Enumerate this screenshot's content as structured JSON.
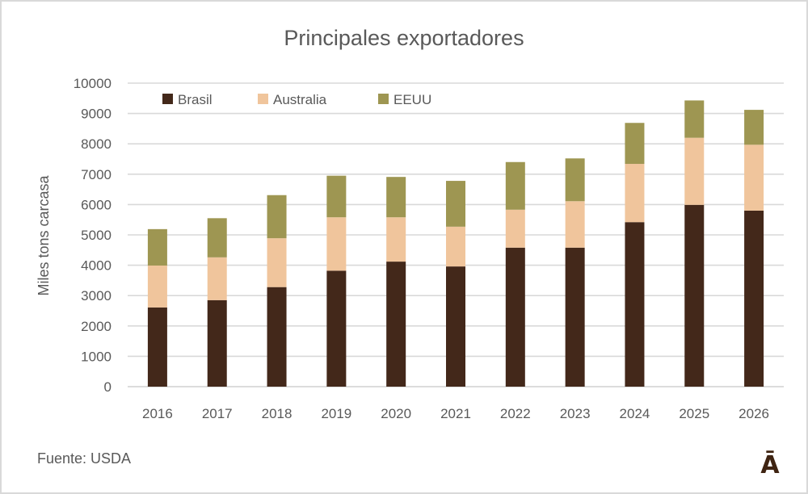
{
  "chart_data": {
    "type": "bar",
    "stacked": true,
    "title": "Principales exportadores",
    "xlabel": "",
    "ylabel": "Miles tons carcasa",
    "ylim": [
      0,
      10000
    ],
    "yticks": [
      0,
      1000,
      2000,
      3000,
      4000,
      5000,
      6000,
      7000,
      8000,
      9000,
      10000
    ],
    "grid": true,
    "legend_position": "top-left",
    "categories": [
      "2016",
      "2017",
      "2018",
      "2019",
      "2020",
      "2021",
      "2022",
      "2023",
      "2024",
      "2025",
      "2026"
    ],
    "series": [
      {
        "name": "Brasil",
        "color": "#43281a",
        "values": [
          2610,
          2850,
          3280,
          3820,
          4120,
          3960,
          4580,
          4580,
          5420,
          5990,
          5800
        ]
      },
      {
        "name": "Australia",
        "color": "#f0c59c",
        "values": [
          1380,
          1410,
          1610,
          1760,
          1460,
          1310,
          1250,
          1530,
          1920,
          2210,
          2170
        ]
      },
      {
        "name": "EEUU",
        "color": "#9e9652",
        "values": [
          1200,
          1290,
          1420,
          1370,
          1330,
          1510,
          1570,
          1410,
          1350,
          1230,
          1150
        ]
      }
    ]
  },
  "footer": {
    "source": "Fuente: USDA",
    "logo": "Ā"
  }
}
